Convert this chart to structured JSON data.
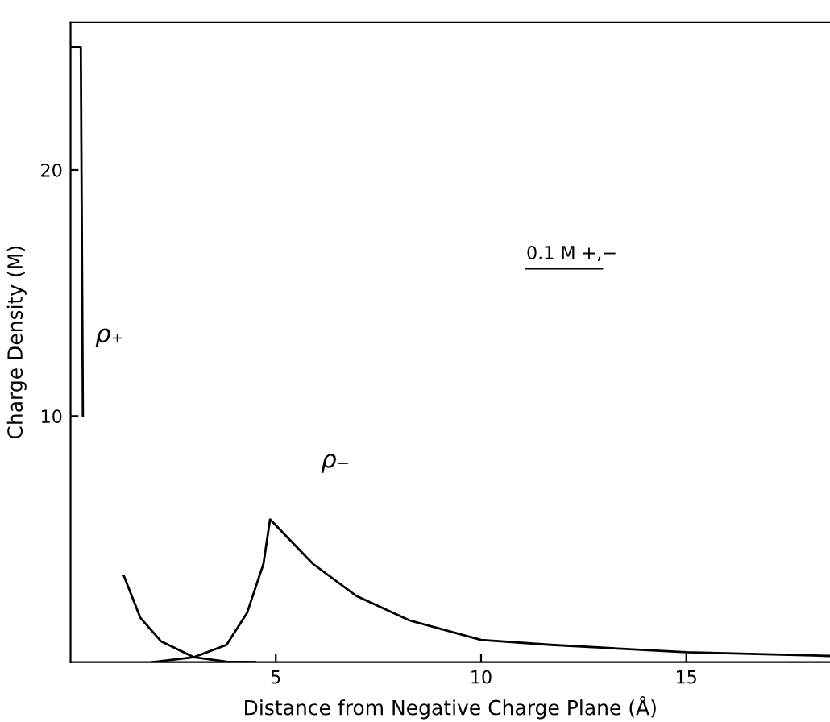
{
  "chart_data": {
    "type": "line",
    "xlabel": "Distance from Negative Charge Plane (Å)",
    "ylabel": "Charge Density (M)",
    "xlim": [
      0,
      18.5
    ],
    "ylim": [
      0,
      26
    ],
    "xticks": [
      5,
      10,
      15
    ],
    "yticks": [
      10,
      20
    ],
    "grid": false,
    "legend": false,
    "marker": "none",
    "line_style": "solid",
    "series": [
      {
        "name": "ρ₊",
        "color": "#000000",
        "x": [
          0,
          0.25,
          0.25,
          0.3,
          null,
          1.3,
          1.7,
          2.2,
          3.0,
          3.8,
          4.5
        ],
        "values": [
          25,
          25,
          25,
          10,
          null,
          3.5,
          1.8,
          0.85,
          0.2,
          0.02,
          0
        ]
      },
      {
        "name": "ρ₋",
        "color": "#000000",
        "x": [
          2.0,
          3.0,
          3.8,
          4.3,
          4.7,
          4.86,
          5.9,
          6.95,
          8.25,
          10,
          11.7,
          15,
          18.5
        ],
        "values": [
          0,
          0.2,
          0.7,
          2.0,
          4.0,
          5.8,
          4.0,
          2.7,
          1.7,
          0.9,
          0.7,
          0.4,
          0.25
        ]
      }
    ],
    "annotations": [
      "0.1 M +,−"
    ]
  }
}
